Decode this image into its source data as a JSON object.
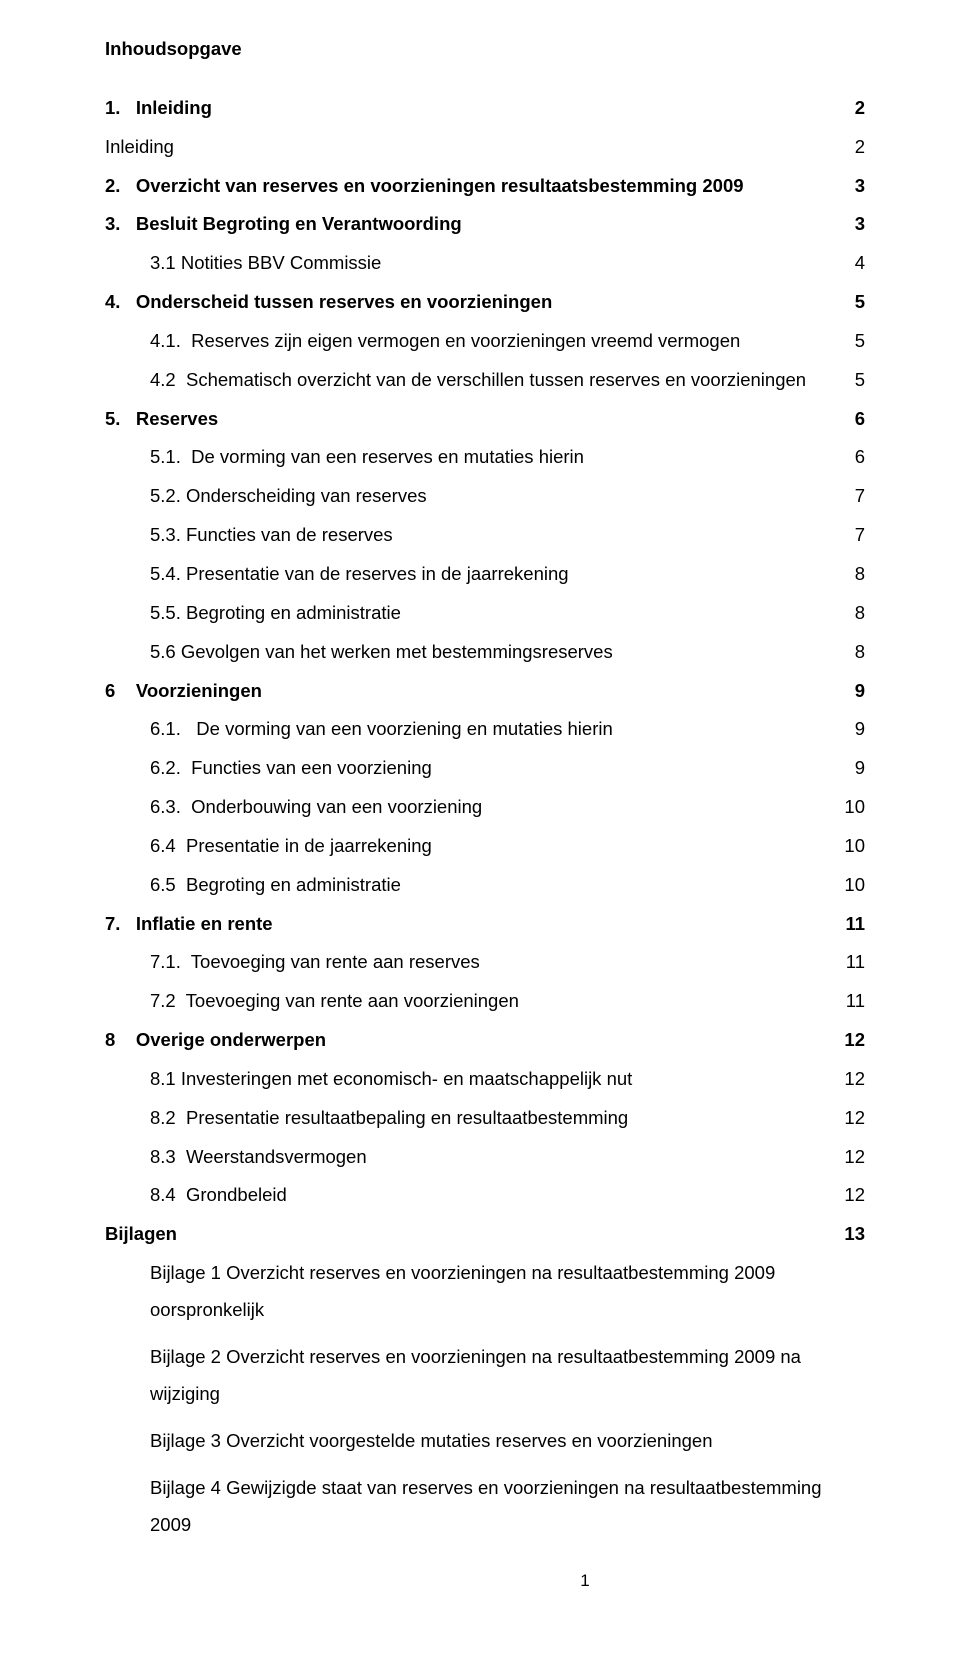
{
  "title": "Inhoudsopgave",
  "entries": [
    {
      "label": "1.   Inleiding",
      "page": "2",
      "bold": true,
      "indent": 0
    },
    {
      "label": "Inleiding",
      "page": "2",
      "bold": false,
      "indent": 0
    },
    {
      "label": "2.   Overzicht van reserves en voorzieningen resultaatsbestemming 2009",
      "page": "3",
      "bold": true,
      "indent": 0
    },
    {
      "label": "3.   Besluit Begroting en Verantwoording",
      "page": "3",
      "bold": true,
      "indent": 0
    },
    {
      "label": "3.1 Notities BBV Commissie",
      "page": "4",
      "bold": false,
      "indent": 1
    },
    {
      "label": "4.   Onderscheid tussen reserves en voorzieningen",
      "page": "5",
      "bold": true,
      "indent": 0
    },
    {
      "label": "4.1.  Reserves zijn eigen vermogen en voorzieningen vreemd vermogen",
      "page": "5",
      "bold": false,
      "indent": 1
    },
    {
      "label": "4.2  Schematisch overzicht van de verschillen tussen reserves en voorzieningen",
      "page": "5",
      "bold": false,
      "indent": 1
    },
    {
      "label": "5.   Reserves",
      "page": "6",
      "bold": true,
      "indent": 0
    },
    {
      "label": "5.1.  De vorming van een reserves en mutaties hierin",
      "page": "6",
      "bold": false,
      "indent": 1
    },
    {
      "label": "5.2. Onderscheiding van reserves",
      "page": "7",
      "bold": false,
      "indent": 1
    },
    {
      "label": "5.3. Functies van de reserves",
      "page": "7",
      "bold": false,
      "indent": 1
    },
    {
      "label": "5.4. Presentatie van de reserves in de jaarrekening",
      "page": "8",
      "bold": false,
      "indent": 1
    },
    {
      "label": "5.5. Begroting en administratie",
      "page": "8",
      "bold": false,
      "indent": 1
    },
    {
      "label": "5.6 Gevolgen van het werken met bestemmingsreserves",
      "page": "8",
      "bold": false,
      "indent": 1
    },
    {
      "label": "6    Voorzieningen",
      "page": "9",
      "bold": true,
      "indent": 0
    },
    {
      "label": "6.1.   De vorming van een voorziening en mutaties hierin",
      "page": "9",
      "bold": false,
      "indent": 1
    },
    {
      "label": "6.2.  Functies van een voorziening",
      "page": "9",
      "bold": false,
      "indent": 1
    },
    {
      "label": "6.3.  Onderbouwing van een voorziening",
      "page": "10",
      "bold": false,
      "indent": 1
    },
    {
      "label": "6.4  Presentatie in de jaarrekening",
      "page": "10",
      "bold": false,
      "indent": 1
    },
    {
      "label": "6.5  Begroting en administratie",
      "page": "10",
      "bold": false,
      "indent": 1
    },
    {
      "label": "7.   Inflatie en rente",
      "page": "11",
      "bold": true,
      "indent": 0
    },
    {
      "label": "7.1.  Toevoeging van rente aan reserves",
      "page": "11",
      "bold": false,
      "indent": 1
    },
    {
      "label": "7.2  Toevoeging van rente aan voorzieningen",
      "page": "11",
      "bold": false,
      "indent": 1
    },
    {
      "label": "8    Overige onderwerpen",
      "page": "12",
      "bold": true,
      "indent": 0
    },
    {
      "label": "8.1 Investeringen met economisch- en maatschappelijk nut",
      "page": "12",
      "bold": false,
      "indent": 1
    },
    {
      "label": "8.2  Presentatie resultaatbepaling en resultaatbestemming",
      "page": "12",
      "bold": false,
      "indent": 1
    },
    {
      "label": "8.3  Weerstandsvermogen",
      "page": "12",
      "bold": false,
      "indent": 1
    },
    {
      "label": "8.4  Grondbeleid",
      "page": "12",
      "bold": false,
      "indent": 1
    },
    {
      "label": "Bijlagen",
      "page": "13",
      "bold": true,
      "indent": 0
    }
  ],
  "bijlagen": [
    "Bijlage 1  Overzicht reserves en voorzieningen na resultaatbestemming 2009 oorspronkelijk",
    "Bijlage 2  Overzicht reserves en voorzieningen na resultaatbestemming 2009 na wijziging",
    "Bijlage 3  Overzicht voorgestelde mutaties reserves en voorzieningen",
    "Bijlage 4  Gewijzigde staat van reserves en voorzieningen na resultaatbestemming 2009"
  ],
  "pageNumber": "1",
  "colors": {
    "text": "#000000",
    "background": "#ffffff"
  },
  "typography": {
    "fontFamily": "Arial",
    "fontSizePx": 18.5,
    "lineHeight": 2.1
  }
}
